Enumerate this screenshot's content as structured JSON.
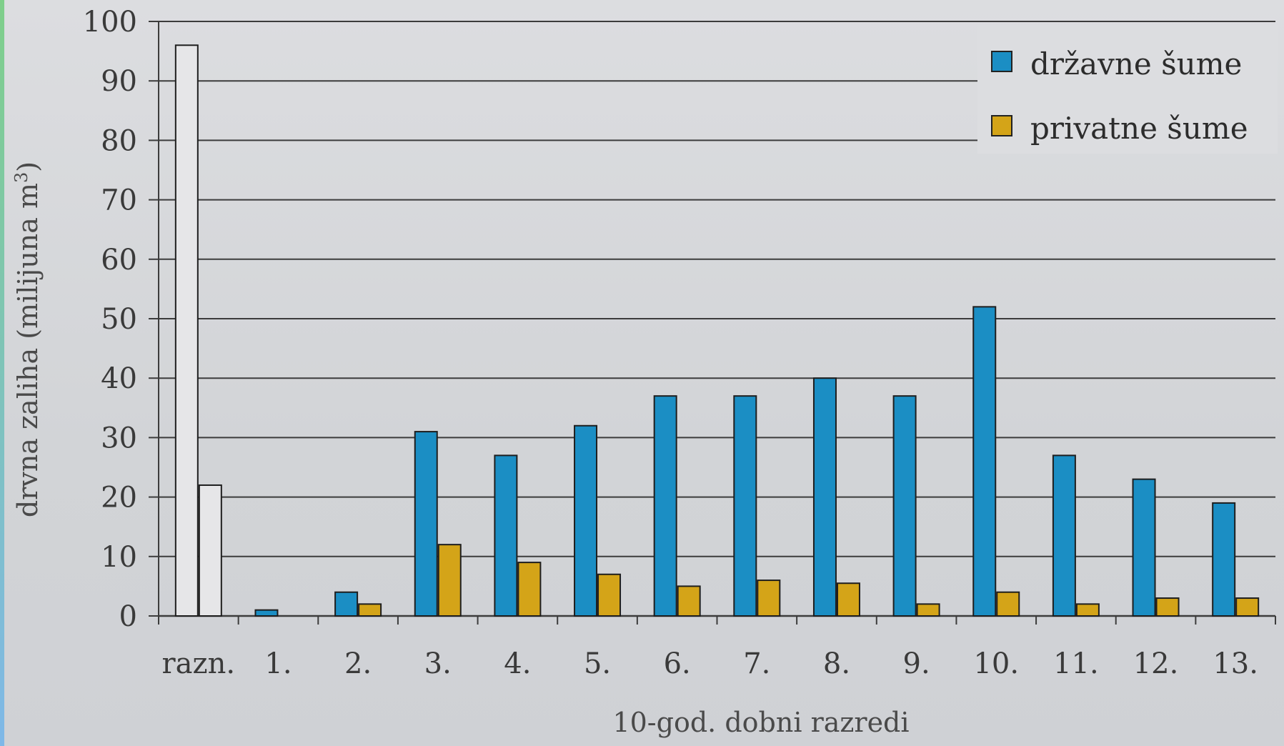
{
  "chart_data": {
    "type": "bar",
    "xlabel": "10-god. dobni razredi",
    "ylabel": "drvna zaliha (milijuna m",
    "ylabel_sup": "3",
    "ylabel_close": ")",
    "ylim": [
      0,
      100
    ],
    "yticks": [
      "0",
      "10",
      "20",
      "30",
      "40",
      "50",
      "60",
      "70",
      "80",
      "90",
      "100"
    ],
    "grid": true,
    "legend_position": "top-right",
    "categories": [
      "razn.",
      "1.",
      "2.",
      "3.",
      "4.",
      "5.",
      "6.",
      "7.",
      "8.",
      "9.",
      "10.",
      "11.",
      "12.",
      "13."
    ],
    "series": [
      {
        "name": "državne šume",
        "color": "#1b8ec4",
        "values": [
          96,
          1,
          4,
          31,
          27,
          32,
          37,
          37,
          40,
          37,
          52,
          27,
          23,
          19
        ]
      },
      {
        "name": "privatne šume",
        "color": "#d4a418",
        "values": [
          22,
          0,
          2,
          12,
          9,
          7,
          5,
          6,
          5.5,
          2,
          4,
          2,
          3,
          3
        ]
      }
    ],
    "first_category_unfilled": true
  }
}
